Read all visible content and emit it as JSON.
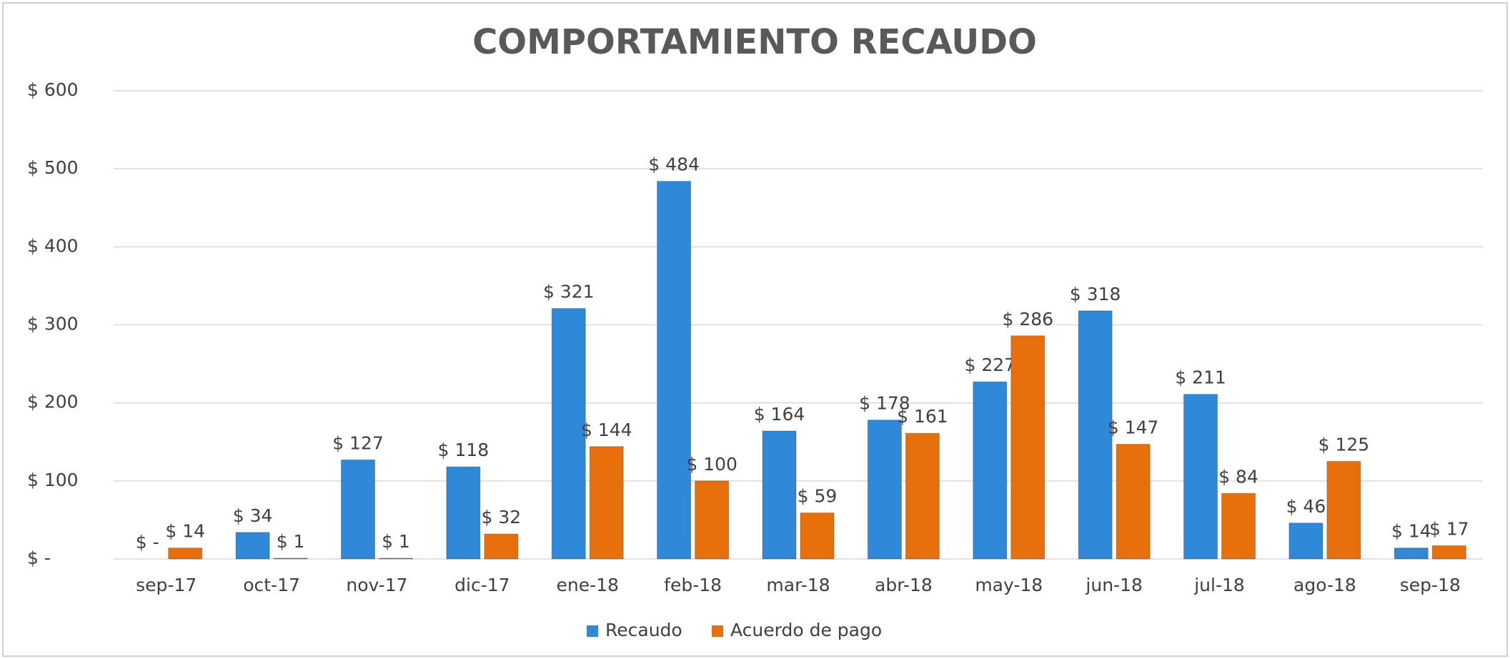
{
  "chart_data": {
    "type": "bar",
    "title": "COMPORTAMIENTO RECAUDO",
    "categories": [
      "sep-17",
      "oct-17",
      "nov-17",
      "dic-17",
      "ene-18",
      "feb-18",
      "mar-18",
      "abr-18",
      "may-18",
      "jun-18",
      "jul-18",
      "ago-18",
      "sep-18"
    ],
    "series": [
      {
        "name": "Recaudo",
        "color": "#2f88d8",
        "values": [
          0,
          34,
          127,
          118,
          321,
          484,
          164,
          178,
          227,
          318,
          211,
          46,
          14
        ],
        "value_labels": [
          "$ -",
          "$ 34",
          "$ 127",
          "$ 118",
          "$ 321",
          "$ 484",
          "$ 164",
          "$ 178",
          "$ 227",
          "$ 318",
          "$ 211",
          "$ 46",
          "$ 14"
        ]
      },
      {
        "name": "Acuerdo de pago",
        "color": "#e8700c",
        "values": [
          14,
          1,
          1,
          32,
          144,
          100,
          59,
          161,
          286,
          147,
          84,
          125,
          17
        ],
        "value_labels": [
          "$ 14",
          "$ 1",
          "$ 1",
          "$ 32",
          "$ 144",
          "$ 100",
          "$ 59",
          "$ 161",
          "$ 286",
          "$ 147",
          "$ 84",
          "$ 125",
          "$ 17"
        ]
      }
    ],
    "ylim": [
      0,
      600
    ],
    "yticks": [
      {
        "value": 0,
        "label": "$ -"
      },
      {
        "value": 100,
        "label": "$ 100"
      },
      {
        "value": 200,
        "label": "$ 200"
      },
      {
        "value": 300,
        "label": "$ 300"
      },
      {
        "value": 400,
        "label": "$ 400"
      },
      {
        "value": 500,
        "label": "$ 500"
      },
      {
        "value": 600,
        "label": "$ 600"
      }
    ],
    "grid": true,
    "legend": "bottom"
  }
}
